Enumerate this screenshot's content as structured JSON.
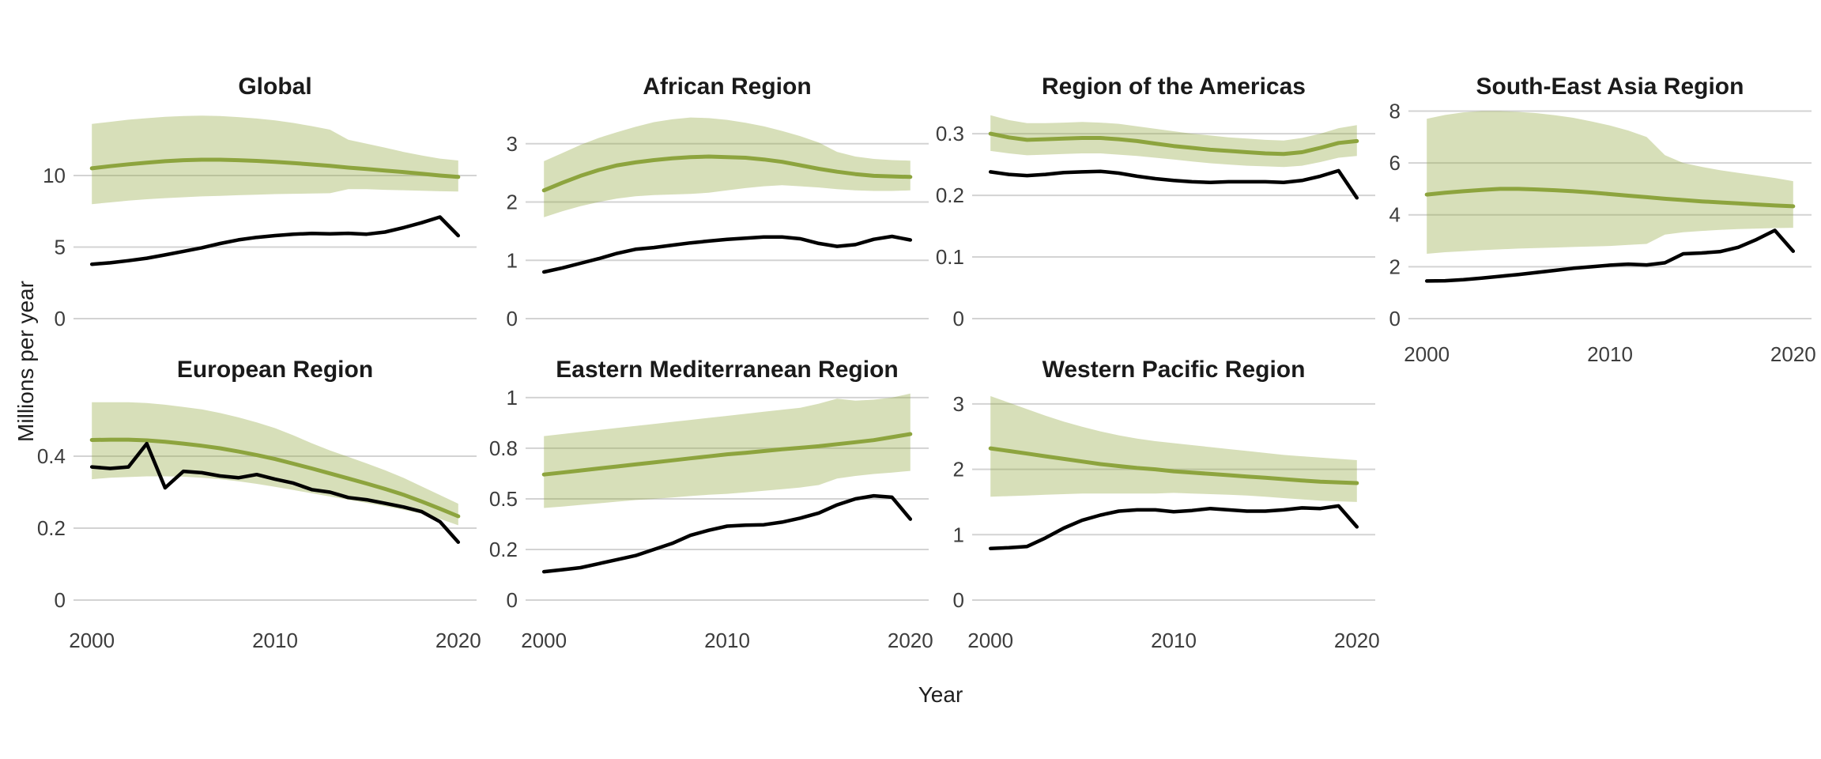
{
  "chart_data": {
    "type": "line",
    "xlabel": "Year",
    "ylabel": "Millions per year",
    "x": {
      "years": [
        2000,
        2001,
        2002,
        2003,
        2004,
        2005,
        2006,
        2007,
        2008,
        2009,
        2010,
        2011,
        2012,
        2013,
        2014,
        2015,
        2016,
        2017,
        2018,
        2019,
        2020
      ],
      "tick_values": [
        2000,
        2010,
        2020
      ],
      "tick_labels": [
        "2000",
        "2010",
        "2020"
      ]
    },
    "series_meaning": {
      "incidence": "estimated incidence (green line)",
      "incidence_low": "lower bound of shaded uncertainty band",
      "incidence_high": "upper bound of shaded uncertainty band",
      "notifications": "case notifications (black line)"
    },
    "grid": "horizontal-only",
    "legend_position": "none",
    "panels": [
      {
        "title": "Global",
        "ylim": [
          0,
          15.19
        ],
        "yticks": [
          {
            "value": 0,
            "label": "0"
          },
          {
            "value": 5,
            "label": "5"
          },
          {
            "value": 10,
            "label": "10"
          }
        ],
        "xticks": [],
        "incidence": [
          10.5,
          10.65,
          10.78,
          10.9,
          11.0,
          11.07,
          11.1,
          11.1,
          11.07,
          11.02,
          10.95,
          10.87,
          10.77,
          10.67,
          10.55,
          10.45,
          10.34,
          10.24,
          10.12,
          10.0,
          9.9
        ],
        "incidence_high": [
          13.6,
          13.75,
          13.9,
          14.0,
          14.1,
          14.15,
          14.18,
          14.15,
          14.08,
          13.98,
          13.85,
          13.67,
          13.45,
          13.2,
          12.5,
          12.22,
          11.95,
          11.65,
          11.4,
          11.18,
          11.05
        ],
        "incidence_low": [
          8.0,
          8.12,
          8.24,
          8.34,
          8.42,
          8.48,
          8.54,
          8.58,
          8.62,
          8.66,
          8.7,
          8.72,
          8.74,
          8.76,
          9.05,
          9.05,
          9.0,
          8.97,
          8.94,
          8.9,
          8.88
        ],
        "notifications": [
          3.8,
          3.9,
          4.05,
          4.22,
          4.45,
          4.7,
          4.95,
          5.25,
          5.5,
          5.68,
          5.8,
          5.9,
          5.95,
          5.92,
          5.96,
          5.9,
          6.05,
          6.35,
          6.7,
          7.1,
          5.8
        ]
      },
      {
        "title": "African Region",
        "ylim": [
          0,
          3.73
        ],
        "yticks": [
          {
            "value": 0,
            "label": "0"
          },
          {
            "value": 1,
            "label": "1"
          },
          {
            "value": 2,
            "label": "2"
          },
          {
            "value": 3,
            "label": "3"
          }
        ],
        "xticks": [],
        "incidence": [
          2.2,
          2.33,
          2.45,
          2.55,
          2.63,
          2.68,
          2.72,
          2.75,
          2.77,
          2.78,
          2.77,
          2.76,
          2.73,
          2.69,
          2.63,
          2.57,
          2.52,
          2.48,
          2.45,
          2.44,
          2.43
        ],
        "incidence_high": [
          2.7,
          2.84,
          2.98,
          3.1,
          3.2,
          3.29,
          3.37,
          3.42,
          3.45,
          3.44,
          3.41,
          3.36,
          3.3,
          3.22,
          3.13,
          3.02,
          2.86,
          2.78,
          2.74,
          2.72,
          2.71
        ],
        "incidence_low": [
          1.74,
          1.84,
          1.93,
          2.0,
          2.06,
          2.1,
          2.12,
          2.13,
          2.14,
          2.16,
          2.2,
          2.24,
          2.27,
          2.29,
          2.27,
          2.25,
          2.22,
          2.2,
          2.19,
          2.19,
          2.2
        ],
        "notifications": [
          0.8,
          0.87,
          0.95,
          1.03,
          1.12,
          1.19,
          1.22,
          1.26,
          1.3,
          1.33,
          1.36,
          1.38,
          1.4,
          1.4,
          1.37,
          1.29,
          1.24,
          1.27,
          1.36,
          1.41,
          1.35
        ]
      },
      {
        "title": "Region of the Americas",
        "ylim": [
          0,
          0.3527
        ],
        "yticks": [
          {
            "value": 0,
            "label": "0"
          },
          {
            "value": 0.1,
            "label": "0.1"
          },
          {
            "value": 0.2,
            "label": "0.2"
          },
          {
            "value": 0.3,
            "label": "0.3"
          }
        ],
        "xticks": [],
        "incidence": [
          0.3,
          0.294,
          0.29,
          0.291,
          0.292,
          0.293,
          0.293,
          0.291,
          0.288,
          0.284,
          0.28,
          0.277,
          0.274,
          0.272,
          0.27,
          0.268,
          0.267,
          0.27,
          0.277,
          0.285,
          0.288
        ],
        "incidence_high": [
          0.33,
          0.322,
          0.317,
          0.317,
          0.318,
          0.319,
          0.318,
          0.316,
          0.312,
          0.308,
          0.304,
          0.3,
          0.297,
          0.294,
          0.292,
          0.29,
          0.289,
          0.293,
          0.3,
          0.309,
          0.314
        ],
        "incidence_low": [
          0.272,
          0.268,
          0.265,
          0.266,
          0.267,
          0.268,
          0.268,
          0.266,
          0.264,
          0.261,
          0.258,
          0.255,
          0.252,
          0.25,
          0.248,
          0.247,
          0.246,
          0.248,
          0.254,
          0.261,
          0.264
        ],
        "notifications": [
          0.238,
          0.234,
          0.232,
          0.234,
          0.237,
          0.238,
          0.239,
          0.236,
          0.231,
          0.227,
          0.224,
          0.222,
          0.221,
          0.222,
          0.222,
          0.222,
          0.221,
          0.224,
          0.231,
          0.24,
          0.196
        ]
      },
      {
        "title": "South-East Asia Region",
        "ylim": [
          0,
          8.38
        ],
        "yticks": [
          {
            "value": 0,
            "label": "0"
          },
          {
            "value": 2,
            "label": "2"
          },
          {
            "value": 4,
            "label": "4"
          },
          {
            "value": 6,
            "label": "6"
          },
          {
            "value": 8,
            "label": "8"
          }
        ],
        "xticks": [
          "2000",
          "2010",
          "2020"
        ],
        "incidence": [
          4.78,
          4.85,
          4.91,
          4.96,
          5.0,
          5.0,
          4.98,
          4.95,
          4.91,
          4.86,
          4.8,
          4.74,
          4.68,
          4.62,
          4.57,
          4.52,
          4.48,
          4.44,
          4.4,
          4.36,
          4.33
        ],
        "incidence_high": [
          7.7,
          7.85,
          7.95,
          8.0,
          8.0,
          7.97,
          7.92,
          7.84,
          7.74,
          7.6,
          7.44,
          7.25,
          7.0,
          6.3,
          6.0,
          5.85,
          5.72,
          5.62,
          5.52,
          5.42,
          5.3
        ],
        "incidence_low": [
          2.5,
          2.56,
          2.6,
          2.64,
          2.67,
          2.7,
          2.72,
          2.74,
          2.76,
          2.78,
          2.8,
          2.84,
          2.88,
          3.24,
          3.33,
          3.38,
          3.42,
          3.45,
          3.47,
          3.49,
          3.5
        ],
        "notifications": [
          1.45,
          1.46,
          1.5,
          1.56,
          1.63,
          1.7,
          1.78,
          1.86,
          1.94,
          2.0,
          2.06,
          2.1,
          2.07,
          2.15,
          2.5,
          2.53,
          2.58,
          2.75,
          3.05,
          3.4,
          2.6
        ]
      },
      {
        "title": "European Region",
        "ylim": [
          0,
          0.578
        ],
        "yticks": [
          {
            "value": 0,
            "label": "0"
          },
          {
            "value": 0.2,
            "label": "0.2"
          },
          {
            "value": 0.4,
            "label": "0.4"
          }
        ],
        "xticks": [
          "2000",
          "2010",
          "2020"
        ],
        "incidence": [
          0.445,
          0.446,
          0.446,
          0.444,
          0.44,
          0.435,
          0.429,
          0.422,
          0.413,
          0.403,
          0.392,
          0.379,
          0.366,
          0.352,
          0.338,
          0.324,
          0.309,
          0.293,
          0.274,
          0.254,
          0.233
        ],
        "incidence_high": [
          0.55,
          0.55,
          0.55,
          0.548,
          0.543,
          0.537,
          0.53,
          0.52,
          0.508,
          0.494,
          0.478,
          0.458,
          0.436,
          0.416,
          0.398,
          0.38,
          0.361,
          0.34,
          0.316,
          0.292,
          0.268
        ],
        "incidence_low": [
          0.336,
          0.34,
          0.342,
          0.344,
          0.344,
          0.343,
          0.34,
          0.336,
          0.33,
          0.323,
          0.315,
          0.306,
          0.297,
          0.288,
          0.279,
          0.27,
          0.261,
          0.251,
          0.24,
          0.226,
          0.208
        ],
        "notifications": [
          0.37,
          0.366,
          0.37,
          0.435,
          0.312,
          0.358,
          0.354,
          0.345,
          0.34,
          0.349,
          0.336,
          0.325,
          0.307,
          0.3,
          0.285,
          0.279,
          0.269,
          0.259,
          0.246,
          0.218,
          0.161
        ]
      },
      {
        "title": "Eastern Mediterranean Region",
        "ylim": [
          0,
          1.027
        ],
        "yticks": [
          {
            "value": 0,
            "label": "0"
          },
          {
            "value": 0.25,
            "label": "0.2"
          },
          {
            "value": 0.5,
            "label": "0.5"
          },
          {
            "value": 0.75,
            "label": "0.8"
          },
          {
            "value": 1,
            "label": "1"
          }
        ],
        "xticks": [
          "2000",
          "2010",
          "2020"
        ],
        "incidence": [
          0.62,
          0.63,
          0.64,
          0.65,
          0.66,
          0.67,
          0.68,
          0.69,
          0.7,
          0.71,
          0.72,
          0.727,
          0.736,
          0.745,
          0.752,
          0.76,
          0.77,
          0.78,
          0.79,
          0.805,
          0.82
        ],
        "incidence_high": [
          0.81,
          0.82,
          0.83,
          0.84,
          0.85,
          0.86,
          0.87,
          0.88,
          0.89,
          0.9,
          0.91,
          0.92,
          0.93,
          0.94,
          0.95,
          0.97,
          0.995,
          0.985,
          0.99,
          1.0,
          1.02
        ],
        "incidence_low": [
          0.455,
          0.462,
          0.47,
          0.478,
          0.486,
          0.494,
          0.5,
          0.507,
          0.514,
          0.52,
          0.525,
          0.532,
          0.54,
          0.548,
          0.556,
          0.568,
          0.6,
          0.613,
          0.623,
          0.63,
          0.638
        ],
        "notifications": [
          0.14,
          0.15,
          0.16,
          0.18,
          0.2,
          0.22,
          0.25,
          0.28,
          0.32,
          0.345,
          0.365,
          0.37,
          0.372,
          0.385,
          0.405,
          0.43,
          0.47,
          0.5,
          0.515,
          0.508,
          0.4
        ]
      },
      {
        "title": "Western Pacific Region",
        "ylim": [
          0,
          3.18
        ],
        "yticks": [
          {
            "value": 0,
            "label": "0"
          },
          {
            "value": 1,
            "label": "1"
          },
          {
            "value": 2,
            "label": "2"
          },
          {
            "value": 3,
            "label": "3"
          }
        ],
        "xticks": [
          "2000",
          "2010",
          "2020"
        ],
        "incidence": [
          2.32,
          2.28,
          2.24,
          2.2,
          2.16,
          2.12,
          2.08,
          2.05,
          2.02,
          2.0,
          1.97,
          1.95,
          1.93,
          1.91,
          1.89,
          1.87,
          1.85,
          1.83,
          1.81,
          1.8,
          1.79
        ],
        "incidence_high": [
          3.12,
          3.02,
          2.92,
          2.82,
          2.73,
          2.65,
          2.58,
          2.52,
          2.47,
          2.43,
          2.4,
          2.37,
          2.34,
          2.31,
          2.28,
          2.25,
          2.22,
          2.2,
          2.18,
          2.16,
          2.14
        ],
        "incidence_low": [
          1.58,
          1.59,
          1.6,
          1.61,
          1.62,
          1.63,
          1.63,
          1.63,
          1.63,
          1.63,
          1.64,
          1.63,
          1.62,
          1.61,
          1.6,
          1.58,
          1.56,
          1.54,
          1.52,
          1.51,
          1.5
        ],
        "notifications": [
          0.79,
          0.8,
          0.82,
          0.95,
          1.1,
          1.22,
          1.3,
          1.36,
          1.38,
          1.38,
          1.35,
          1.37,
          1.4,
          1.38,
          1.36,
          1.36,
          1.38,
          1.41,
          1.4,
          1.44,
          1.12
        ]
      }
    ],
    "colors": {
      "incidence_line": "#8da43e",
      "incidence_band": "#8fa63c",
      "notifications_line": "#000000",
      "gridline": "#d3d3d3",
      "tick_text": "#3d3d3d",
      "title_text": "#1a1a1a"
    }
  }
}
